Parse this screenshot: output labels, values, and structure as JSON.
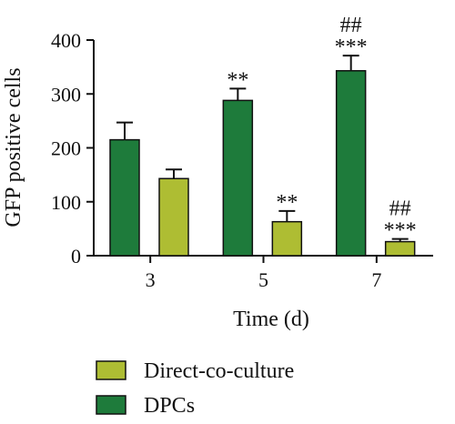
{
  "chart_data": {
    "type": "bar",
    "title": "",
    "xlabel": "Time (d)",
    "ylabel": "GFP positive cells",
    "ylim": [
      0,
      400
    ],
    "yticks": [
      0,
      100,
      200,
      300,
      400
    ],
    "categories": [
      "3",
      "5",
      "7"
    ],
    "series": [
      {
        "name": "DPCs",
        "color": "#1e7b3b",
        "values": [
          215,
          288,
          343
        ],
        "errors": [
          32,
          22,
          28
        ],
        "annotations": [
          "",
          "**",
          "***"
        ],
        "annotations2": [
          "",
          "",
          "##"
        ]
      },
      {
        "name": "Direct-co-culture",
        "color": "#aebd33",
        "values": [
          143,
          63,
          26
        ],
        "errors": [
          17,
          20,
          5
        ],
        "annotations": [
          "",
          "**",
          "***"
        ],
        "annotations2": [
          "",
          "",
          "##"
        ]
      }
    ],
    "legend": {
      "position": "bottom",
      "entries": [
        "Direct-co-culture",
        "DPCs"
      ]
    },
    "grid": false
  }
}
